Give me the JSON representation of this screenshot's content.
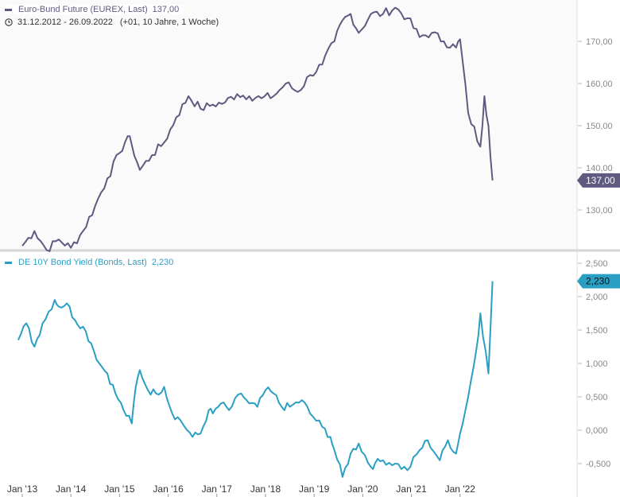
{
  "header": {
    "series1_label": "Euro-Bund Future (EUREX, Last)",
    "series1_value": "137,00",
    "period": "31.12.2012 - 26.09.2022",
    "period_info": "(+01, 10 Jahre, 1 Woche)"
  },
  "panel2": {
    "series2_label": "DE 10Y Bond Yield (Bonds, Last)",
    "series2_value": "2,230"
  },
  "colors": {
    "bund": "#5e5a80",
    "yield": "#2a9fc4",
    "upper_bg": "#fafafa",
    "axis_text": "#888888"
  },
  "chart_data": [
    {
      "type": "line",
      "series": [
        {
          "name": "Euro-Bund Future (EUREX, Last)",
          "x": [
            "2013-01",
            "2013-04",
            "2013-07",
            "2013-10",
            "2014-01",
            "2014-04",
            "2014-07",
            "2014-10",
            "2015-01",
            "2015-03",
            "2015-04",
            "2015-06",
            "2015-09",
            "2015-12",
            "2016-03",
            "2016-06",
            "2016-09",
            "2016-12",
            "2017-03",
            "2017-06",
            "2017-09",
            "2017-12",
            "2018-03",
            "2018-06",
            "2018-09",
            "2018-12",
            "2019-03",
            "2019-06",
            "2019-08",
            "2019-10",
            "2019-12",
            "2020-03",
            "2020-06",
            "2020-09",
            "2020-12",
            "2021-03",
            "2021-06",
            "2021-09",
            "2021-12",
            "2022-01",
            "2022-03",
            "2022-06",
            "2022-07",
            "2022-08",
            "2022-09"
          ],
          "values": [
            121.5,
            125.0,
            120.5,
            123.0,
            121.0,
            125.0,
            131.0,
            137.5,
            143.5,
            147.5,
            145.5,
            139.5,
            143.0,
            146.0,
            152.0,
            157.0,
            154.0,
            155.0,
            155.5,
            157.5,
            157.0,
            156.5,
            157.0,
            160.0,
            158.0,
            162.0,
            164.5,
            170.0,
            175.0,
            176.5,
            172.0,
            176.5,
            176.5,
            178.0,
            175.5,
            171.0,
            172.0,
            170.0,
            168.5,
            170.5,
            153.0,
            145.0,
            157.0,
            150.0,
            137.0
          ]
        }
      ],
      "last_value_label": "137,00",
      "y_ticks": [
        "130,00",
        "140,00",
        "150,00",
        "160,00",
        "170,00"
      ],
      "ylim": [
        120,
        178
      ],
      "grid": false
    },
    {
      "type": "line",
      "series": [
        {
          "name": "DE 10Y Bond Yield (Bonds, Last)",
          "x": [
            "2012-12",
            "2013-02",
            "2013-04",
            "2013-06",
            "2013-09",
            "2013-10",
            "2013-12",
            "2014-02",
            "2014-04",
            "2014-06",
            "2014-08",
            "2014-10",
            "2014-12",
            "2015-02",
            "2015-04",
            "2015-05",
            "2015-06",
            "2015-08",
            "2015-10",
            "2015-12",
            "2016-02",
            "2016-04",
            "2016-07",
            "2016-09",
            "2016-11",
            "2016-12",
            "2017-02",
            "2017-04",
            "2017-07",
            "2017-09",
            "2017-11",
            "2018-01",
            "2018-03",
            "2018-05",
            "2018-07",
            "2018-10",
            "2018-12",
            "2019-03",
            "2019-05",
            "2019-06",
            "2019-08",
            "2019-10",
            "2019-12",
            "2020-03",
            "2020-04",
            "2020-06",
            "2020-09",
            "2020-12",
            "2021-03",
            "2021-05",
            "2021-08",
            "2021-10",
            "2021-12",
            "2022-01",
            "2022-03",
            "2022-05",
            "2022-06",
            "2022-08",
            "2022-09"
          ],
          "values": [
            1.35,
            1.6,
            1.25,
            1.6,
            1.95,
            1.85,
            1.9,
            1.65,
            1.55,
            1.3,
            1.0,
            0.85,
            0.55,
            0.3,
            0.1,
            0.65,
            0.9,
            0.6,
            0.55,
            0.65,
            0.25,
            0.15,
            -0.1,
            -0.05,
            0.3,
            0.25,
            0.4,
            0.3,
            0.55,
            0.4,
            0.35,
            0.6,
            0.55,
            0.35,
            0.35,
            0.45,
            0.25,
            0.05,
            -0.1,
            -0.3,
            -0.7,
            -0.35,
            -0.2,
            -0.55,
            -0.5,
            -0.45,
            -0.5,
            -0.6,
            -0.3,
            -0.15,
            -0.45,
            -0.15,
            -0.35,
            -0.05,
            0.5,
            1.2,
            1.75,
            0.85,
            2.23
          ]
        }
      ],
      "last_value_label": "2,230",
      "y_ticks": [
        "-0,500",
        "0,000",
        "0,500",
        "1,000",
        "1,500",
        "2,000",
        "2,500"
      ],
      "ylim": [
        -0.7,
        2.5
      ],
      "x_tick_labels": [
        "Jan '13",
        "Jan '14",
        "Jan '15",
        "Jan '16",
        "Jan '17",
        "Jan '18",
        "Jan '19",
        "Jan '20",
        "Jan '21",
        "Jan '22"
      ],
      "grid": false
    }
  ]
}
